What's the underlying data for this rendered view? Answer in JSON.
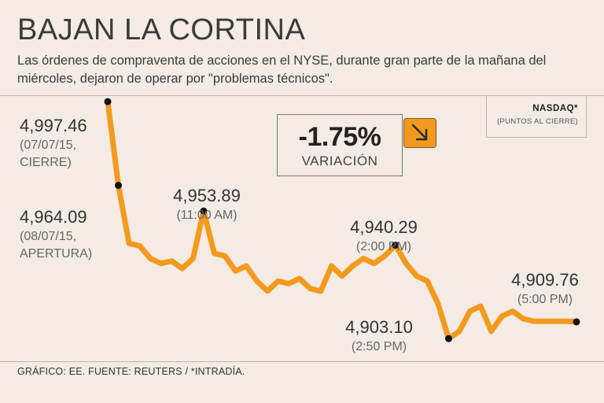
{
  "header": {
    "title": "BAJAN LA CORTINA",
    "subtitle": "Las órdenes de compraventa de acciones en el NYSE, durante gran parte de la mañana del miércoles, dejaron de operar por \"problemas técnicos\"."
  },
  "legend": {
    "index": "NASDAQ*",
    "note": "(PUNTOS AL CIERRE)"
  },
  "variation": {
    "value": "-1.75%",
    "label": "VARIACIÓN",
    "icon": "arrow-down-right-icon"
  },
  "footer": "GRÁFICO: EE. FUENTE: REUTERS / *INTRADÍA.",
  "colors": {
    "line": "#f39a1e",
    "marker": "#111111",
    "background": "#f3ebe4",
    "label_value": "#333333",
    "label_sub": "#666666"
  },
  "chart_data": {
    "type": "line",
    "title": "BAJAN LA CORTINA",
    "series": [
      {
        "name": "NASDAQ",
        "values": [
          4997.46,
          4964.09,
          4941,
          4940,
          4935,
          4933,
          4934,
          4931,
          4935,
          4953.89,
          4937,
          4936,
          4930,
          4932,
          4926,
          4922,
          4926,
          4925,
          4927,
          4923,
          4922,
          4932,
          4928,
          4932,
          4935,
          4933,
          4936,
          4940.29,
          4933,
          4928,
          4926,
          4917,
          4903.1,
          4906,
          4914,
          4916,
          4906,
          4912,
          4914,
          4911,
          4910,
          4910,
          4910,
          4910,
          4909.76
        ]
      }
    ],
    "annotations": [
      {
        "index": 0,
        "value": "4,997.46",
        "sub": [
          "(07/07/15,",
          "CIERRE)"
        ]
      },
      {
        "index": 1,
        "value": "4,964.09",
        "sub": [
          "(08/07/15,",
          "APERTURA)"
        ]
      },
      {
        "index": 9,
        "value": "4,953.89",
        "sub": [
          "(11:00 AM)"
        ]
      },
      {
        "index": 27,
        "value": "4,940.29",
        "sub": [
          "(2:00 PM)"
        ]
      },
      {
        "index": 32,
        "value": "4,903.10",
        "sub": [
          "(2:50 PM)"
        ]
      },
      {
        "index": 44,
        "value": "4,909.76",
        "sub": [
          "(5:00 PM)"
        ]
      }
    ],
    "ylim": [
      4895,
      5005
    ],
    "xlabel": "",
    "ylabel": "",
    "grid": false
  }
}
